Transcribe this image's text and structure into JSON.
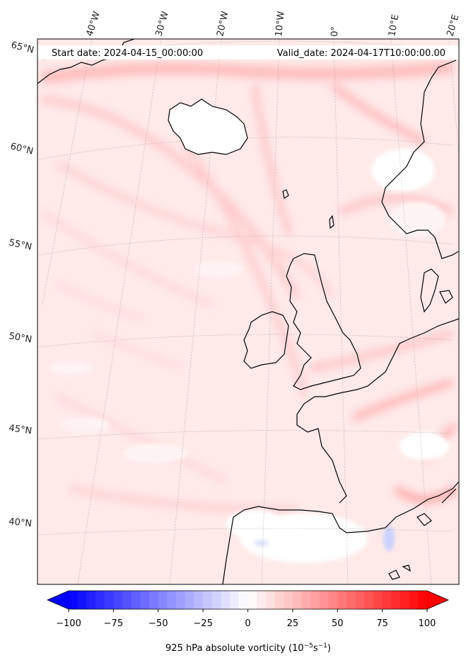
{
  "header": {
    "start_date": "Start date: 2024-04-15_00:00:00",
    "valid_date": "Valid_date: 2024-04-17T10:00:00.00"
  },
  "longitude_labels": [
    "40°W",
    "30°W",
    "20°W",
    "10°W",
    "0°",
    "10°E",
    "20°E"
  ],
  "latitude_labels": [
    "65°N",
    "60°N",
    "55°N",
    "50°N",
    "45°N",
    "40°N"
  ],
  "colorbar": {
    "ticks": [
      "−100",
      "−75",
      "−50",
      "−25",
      "0",
      "25",
      "50",
      "75",
      "100"
    ],
    "label_prefix": "925 hPa absolute vorticity (10",
    "label_exp1": "−5",
    "label_mid": "s",
    "label_exp2": "−1",
    "label_suffix": ")",
    "min": -100,
    "max": 100,
    "negative_color": "#0000ff",
    "positive_color": "#ff0000",
    "extend": "both"
  },
  "colors": {
    "land_outline": "#000000",
    "field_background": "#ffe8e8",
    "gridline": "#999999"
  }
}
